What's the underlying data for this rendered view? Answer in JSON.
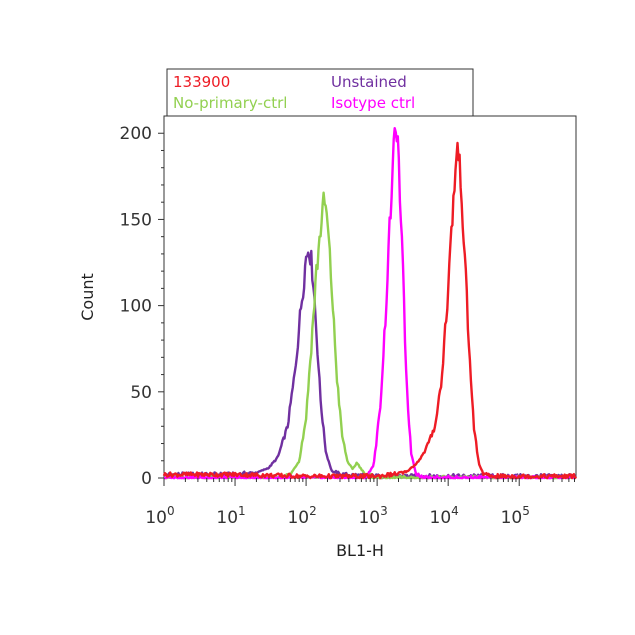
{
  "chart_data": {
    "type": "line",
    "xlabel": "BL1-H",
    "ylabel": "Count",
    "xscale": "log",
    "xlim": [
      1,
      630000
    ],
    "ylim": [
      0,
      210
    ],
    "x_ticks": [
      {
        "value": 1,
        "base": "10",
        "exp": "0"
      },
      {
        "value": 10,
        "base": "10",
        "exp": "1"
      },
      {
        "value": 100,
        "base": "10",
        "exp": "2"
      },
      {
        "value": 1000,
        "base": "10",
        "exp": "3"
      },
      {
        "value": 10000,
        "base": "10",
        "exp": "4"
      },
      {
        "value": 100000,
        "base": "10",
        "exp": "5"
      }
    ],
    "y_ticks": [
      0,
      50,
      100,
      150,
      200
    ],
    "grid": false,
    "legend_position": "top-left",
    "legend": [
      {
        "label": "133900",
        "color": "#ee1c25"
      },
      {
        "label": "Unstained",
        "color": "#7030a0"
      },
      {
        "label": "No-primary-ctrl",
        "color": "#92d050"
      },
      {
        "label": "Isotype ctrl",
        "color": "#ff00ff"
      }
    ],
    "series": [
      {
        "name": "Unstained",
        "color": "#7030a0",
        "points": [
          [
            1,
            2
          ],
          [
            10,
            2
          ],
          [
            20,
            3
          ],
          [
            30,
            6
          ],
          [
            40,
            12
          ],
          [
            55,
            30
          ],
          [
            70,
            62
          ],
          [
            85,
            100
          ],
          [
            100,
            128
          ],
          [
            110,
            135
          ],
          [
            125,
            118
          ],
          [
            140,
            85
          ],
          [
            160,
            45
          ],
          [
            190,
            15
          ],
          [
            230,
            4
          ],
          [
            300,
            2
          ],
          [
            1000,
            1
          ],
          [
            630000,
            1
          ]
        ]
      },
      {
        "name": "No-primary-ctrl",
        "color": "#92d050",
        "points": [
          [
            1,
            0
          ],
          [
            40,
            0
          ],
          [
            60,
            2
          ],
          [
            80,
            10
          ],
          [
            100,
            35
          ],
          [
            120,
            80
          ],
          [
            140,
            120
          ],
          [
            165,
            150
          ],
          [
            180,
            162
          ],
          [
            200,
            148
          ],
          [
            230,
            110
          ],
          [
            270,
            60
          ],
          [
            320,
            25
          ],
          [
            380,
            10
          ],
          [
            450,
            5
          ],
          [
            520,
            9
          ],
          [
            600,
            5
          ],
          [
            700,
            2
          ],
          [
            1000,
            0
          ],
          [
            630000,
            0
          ]
        ]
      },
      {
        "name": "Isotype ctrl",
        "color": "#ff00ff",
        "points": [
          [
            1,
            0
          ],
          [
            700,
            0
          ],
          [
            900,
            8
          ],
          [
            1100,
            40
          ],
          [
            1300,
            90
          ],
          [
            1500,
            145
          ],
          [
            1700,
            188
          ],
          [
            1850,
            208
          ],
          [
            2000,
            185
          ],
          [
            2300,
            120
          ],
          [
            2600,
            55
          ],
          [
            3000,
            15
          ],
          [
            3500,
            3
          ],
          [
            4500,
            0
          ],
          [
            630000,
            0
          ]
        ]
      },
      {
        "name": "133900",
        "color": "#ee1c25",
        "points": [
          [
            1,
            2
          ],
          [
            10,
            2
          ],
          [
            100,
            1
          ],
          [
            1000,
            1
          ],
          [
            2500,
            3
          ],
          [
            3500,
            8
          ],
          [
            4500,
            14
          ],
          [
            5500,
            22
          ],
          [
            6500,
            30
          ],
          [
            8000,
            55
          ],
          [
            10000,
            110
          ],
          [
            12000,
            165
          ],
          [
            13500,
            193
          ],
          [
            15000,
            175
          ],
          [
            17000,
            130
          ],
          [
            20000,
            70
          ],
          [
            23000,
            30
          ],
          [
            27000,
            8
          ],
          [
            32000,
            2
          ],
          [
            40000,
            1
          ],
          [
            100000,
            1
          ],
          [
            630000,
            1
          ]
        ]
      }
    ]
  }
}
